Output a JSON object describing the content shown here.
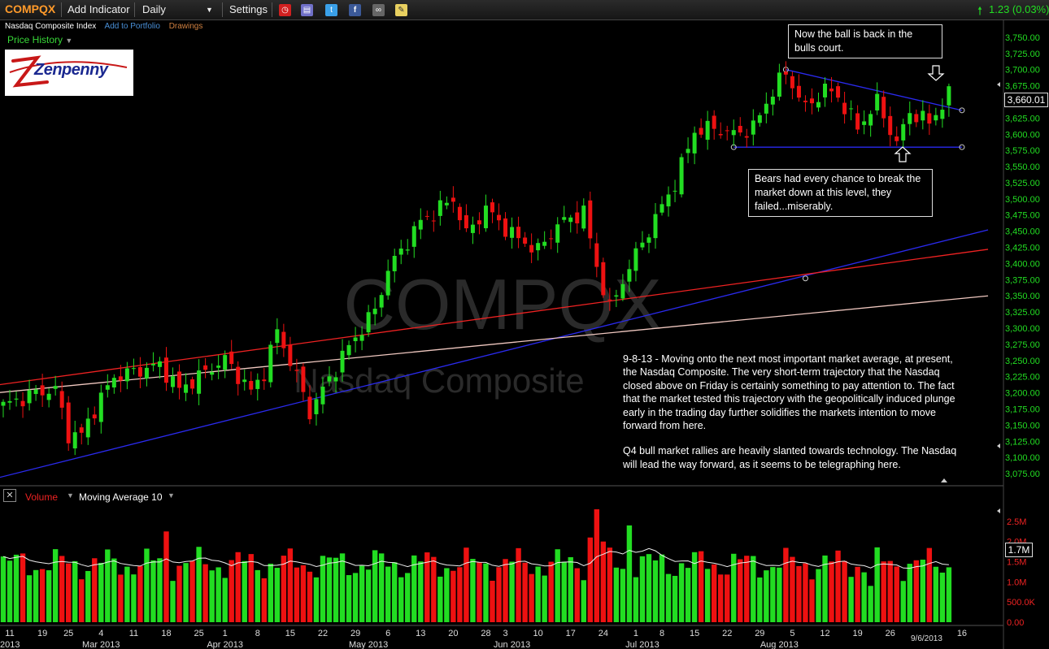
{
  "toolbar": {
    "symbol": "COMPQX",
    "add_indicator": "Add Indicator",
    "interval": "Daily",
    "settings": "Settings",
    "change": "1.23 (0.03%)"
  },
  "subbar": {
    "index_name": "Nasdaq Composite Index",
    "add_portfolio": "Add to Portfolio",
    "drawings": "Drawings"
  },
  "price_panel": {
    "label": "Price History"
  },
  "logo": {
    "text": "Zenpenny"
  },
  "watermark": {
    "symbol": "COMPQX",
    "name": "Nasdaq Composite"
  },
  "annotations": {
    "bulls": "Now the ball is back in the bulls court.",
    "bears": "Bears had every chance to break the market down at this level, they failed...miserably."
  },
  "commentary": [
    "9-8-13 - Moving onto the next most important market average, at present, the Nasdaq Composite. The very short-term trajectory that the Nasdaq closed above on Friday is certainly something to pay attention to. The fact that the market tested this trajectory with the geopolitically induced plunge early in the trading day further solidifies the markets intention to move forward from here.",
    "Q4 bull market rallies are heavily slanted towards technology. The Nasdaq will lead the way forward, as it seems to be telegraphing here."
  ],
  "volume_panel": {
    "label": "Volume",
    "ma_label": "Moving Average 10"
  },
  "last_price_label": "3,660.01",
  "last_volume_label": "1.7M",
  "date_stamp": "9/6/2013",
  "colors": {
    "up": "#22dd22",
    "down": "#ee1111",
    "accent": "#ff9a2a"
  },
  "chart_data": {
    "type": "candlestick",
    "price_axis": {
      "ylim": [
        3060,
        3775
      ],
      "ticks": [
        3075,
        3100,
        3125,
        3150,
        3175,
        3200,
        3225,
        3250,
        3275,
        3300,
        3325,
        3350,
        3375,
        3400,
        3425,
        3450,
        3475,
        3500,
        3525,
        3550,
        3575,
        3600,
        3625,
        3650,
        3675,
        3700,
        3725,
        3750
      ],
      "tick_labels": [
        "3,075.00",
        "3,100.00",
        "3,125.00",
        "3,150.00",
        "3,175.00",
        "3,200.00",
        "3,225.00",
        "3,250.00",
        "3,275.00",
        "3,300.00",
        "3,325.00",
        "3,350.00",
        "3,375.00",
        "3,400.00",
        "3,425.00",
        "3,450.00",
        "3,475.00",
        "3,500.00",
        "3,525.00",
        "3,550.00",
        "3,575.00",
        "3,600.00",
        "3,625.00",
        "3,650.00",
        "3,675.00",
        "3,700.00",
        "3,725.00",
        "3,750.00"
      ]
    },
    "volume_axis": {
      "ylim": [
        0,
        2900000
      ],
      "ticks": [
        0,
        500000,
        1000000,
        1500000,
        2000000,
        2500000
      ],
      "tick_labels": [
        "0.00",
        "500.0K",
        "1.0M",
        "1.5M",
        "2.0M",
        "2.5M"
      ]
    },
    "x_axis": {
      "day_ticks": [
        {
          "i": 1,
          "label": "11"
        },
        {
          "i": 6,
          "label": "19"
        },
        {
          "i": 10,
          "label": "25"
        },
        {
          "i": 15,
          "label": "4"
        },
        {
          "i": 20,
          "label": "11"
        },
        {
          "i": 25,
          "label": "18"
        },
        {
          "i": 30,
          "label": "25"
        },
        {
          "i": 34,
          "label": "1"
        },
        {
          "i": 39,
          "label": "8"
        },
        {
          "i": 44,
          "label": "15"
        },
        {
          "i": 49,
          "label": "22"
        },
        {
          "i": 54,
          "label": "29"
        },
        {
          "i": 59,
          "label": "6"
        },
        {
          "i": 64,
          "label": "13"
        },
        {
          "i": 69,
          "label": "20"
        },
        {
          "i": 74,
          "label": "28"
        },
        {
          "i": 77,
          "label": "3"
        },
        {
          "i": 82,
          "label": "10"
        },
        {
          "i": 87,
          "label": "17"
        },
        {
          "i": 92,
          "label": "24"
        },
        {
          "i": 97,
          "label": "1"
        },
        {
          "i": 101,
          "label": "8"
        },
        {
          "i": 106,
          "label": "15"
        },
        {
          "i": 111,
          "label": "22"
        },
        {
          "i": 116,
          "label": "29"
        },
        {
          "i": 121,
          "label": "5"
        },
        {
          "i": 126,
          "label": "12"
        },
        {
          "i": 131,
          "label": "19"
        },
        {
          "i": 136,
          "label": "26"
        },
        {
          "i": 147,
          "label": "16"
        }
      ],
      "month_ticks": [
        {
          "i": 0,
          "label": "2013"
        },
        {
          "i": 15,
          "label": "Mar 2013"
        },
        {
          "i": 34,
          "label": "Apr 2013"
        },
        {
          "i": 56,
          "label": "May 2013"
        },
        {
          "i": 78,
          "label": "Jun 2013"
        },
        {
          "i": 98,
          "label": "Jul 2013"
        },
        {
          "i": 119,
          "label": "Aug 2013"
        }
      ]
    },
    "trendlines": [
      {
        "name": "",
        "color": "#2a2aee",
        "from": [
          -1,
          3068
        ],
        "to": [
          151,
          3452
        ]
      },
      {
        "name": "",
        "color": "#ee2222",
        "from": [
          -1,
          3212
        ],
        "to": [
          151,
          3422
        ]
      },
      {
        "name": "",
        "color": "#f0c8c0",
        "from": [
          -1,
          3200
        ],
        "to": [
          151,
          3350
        ]
      },
      {
        "name": "",
        "color": "#2a2aee",
        "from": [
          112,
          3580
        ],
        "to": [
          147,
          3580
        ]
      },
      {
        "name": "",
        "color": "#2a2aee",
        "from": [
          120,
          3700
        ],
        "to": [
          147,
          3637
        ]
      }
    ],
    "candles": [],
    "volume": [],
    "volume_ma10": []
  }
}
